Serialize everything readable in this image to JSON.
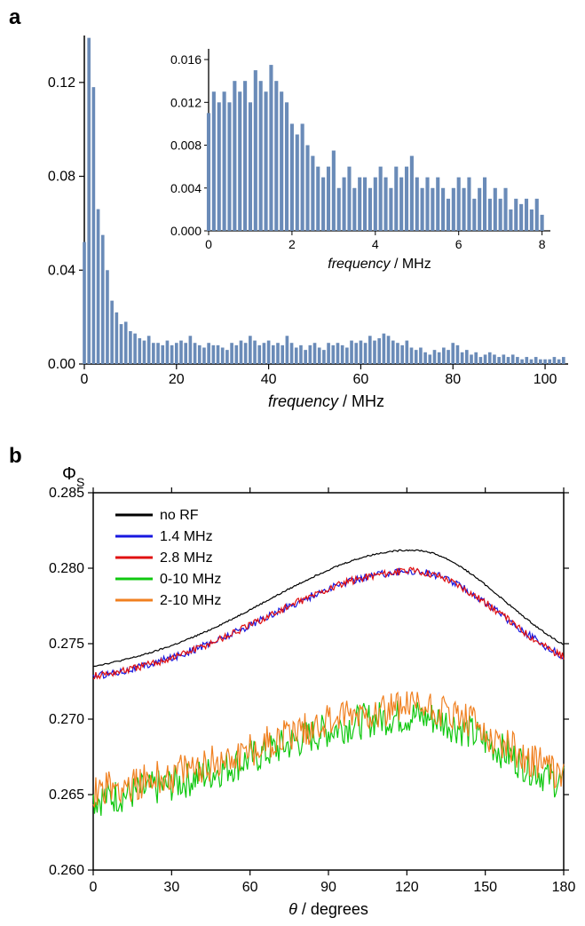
{
  "panel_a": {
    "label": "a",
    "main_chart": {
      "type": "bar",
      "xlabel": "frequency / MHz",
      "ylabel": "",
      "xlim": [
        0,
        105
      ],
      "ylim": [
        0,
        0.14
      ],
      "xticks": [
        0,
        20,
        40,
        60,
        80,
        100
      ],
      "yticks": [
        0.0,
        0.04,
        0.08,
        0.12
      ],
      "bar_color": "#6a8bb8",
      "background_color": "#ffffff",
      "axis_color": "#000000",
      "label_fontsize": 18,
      "tick_fontsize": 16,
      "bar_width": 0.7,
      "x_values": [
        0,
        1,
        2,
        3,
        4,
        5,
        6,
        7,
        8,
        9,
        10,
        11,
        12,
        13,
        14,
        15,
        16,
        17,
        18,
        19,
        20,
        21,
        22,
        23,
        24,
        25,
        26,
        27,
        28,
        29,
        30,
        31,
        32,
        33,
        34,
        35,
        36,
        37,
        38,
        39,
        40,
        41,
        42,
        43,
        44,
        45,
        46,
        47,
        48,
        49,
        50,
        51,
        52,
        53,
        54,
        55,
        56,
        57,
        58,
        59,
        60,
        61,
        62,
        63,
        64,
        65,
        66,
        67,
        68,
        69,
        70,
        71,
        72,
        73,
        74,
        75,
        76,
        77,
        78,
        79,
        80,
        81,
        82,
        83,
        84,
        85,
        86,
        87,
        88,
        89,
        90,
        91,
        92,
        93,
        94,
        95,
        96,
        97,
        98,
        99,
        100,
        101,
        102,
        103,
        104
      ],
      "y_values": [
        0.052,
        0.139,
        0.118,
        0.066,
        0.055,
        0.04,
        0.027,
        0.022,
        0.017,
        0.018,
        0.014,
        0.013,
        0.011,
        0.01,
        0.012,
        0.009,
        0.009,
        0.008,
        0.01,
        0.008,
        0.009,
        0.01,
        0.009,
        0.012,
        0.009,
        0.008,
        0.007,
        0.009,
        0.008,
        0.008,
        0.007,
        0.006,
        0.009,
        0.008,
        0.01,
        0.009,
        0.012,
        0.01,
        0.008,
        0.009,
        0.01,
        0.008,
        0.009,
        0.008,
        0.012,
        0.009,
        0.007,
        0.008,
        0.006,
        0.008,
        0.009,
        0.007,
        0.006,
        0.009,
        0.008,
        0.009,
        0.008,
        0.007,
        0.01,
        0.009,
        0.01,
        0.009,
        0.012,
        0.01,
        0.011,
        0.013,
        0.012,
        0.01,
        0.009,
        0.008,
        0.01,
        0.007,
        0.006,
        0.007,
        0.005,
        0.004,
        0.006,
        0.005,
        0.007,
        0.006,
        0.009,
        0.008,
        0.005,
        0.006,
        0.004,
        0.005,
        0.003,
        0.004,
        0.005,
        0.004,
        0.003,
        0.004,
        0.003,
        0.004,
        0.003,
        0.002,
        0.003,
        0.002,
        0.003,
        0.002,
        0.002,
        0.002,
        0.003,
        0.002,
        0.003
      ]
    },
    "inset_chart": {
      "type": "bar",
      "xlabel": "frequency / MHz",
      "ylabel": "",
      "xlim": [
        0,
        8.2
      ],
      "ylim": [
        0,
        0.017
      ],
      "xticks": [
        0,
        2,
        4,
        6,
        8
      ],
      "yticks": [
        0.0,
        0.004,
        0.008,
        0.012,
        0.016
      ],
      "bar_color": "#6a8bb8",
      "background_color": "#ffffff",
      "axis_color": "#000000",
      "label_fontsize": 16,
      "tick_fontsize": 14,
      "bar_width": 0.7,
      "x_step": 0.125,
      "n_bars": 65,
      "y_values": [
        0.011,
        0.013,
        0.012,
        0.013,
        0.012,
        0.014,
        0.013,
        0.014,
        0.012,
        0.015,
        0.014,
        0.013,
        0.0155,
        0.014,
        0.013,
        0.012,
        0.01,
        0.009,
        0.01,
        0.008,
        0.007,
        0.006,
        0.005,
        0.006,
        0.0075,
        0.004,
        0.005,
        0.006,
        0.004,
        0.005,
        0.005,
        0.004,
        0.005,
        0.006,
        0.005,
        0.004,
        0.006,
        0.005,
        0.006,
        0.007,
        0.005,
        0.004,
        0.005,
        0.004,
        0.005,
        0.004,
        0.003,
        0.004,
        0.005,
        0.004,
        0.005,
        0.003,
        0.004,
        0.005,
        0.003,
        0.004,
        0.003,
        0.004,
        0.002,
        0.003,
        0.0025,
        0.003,
        0.002,
        0.003,
        0.0015
      ]
    }
  },
  "panel_b": {
    "label": "b",
    "chart": {
      "type": "line",
      "xlabel": "θ / degrees",
      "ylabel": "Φs",
      "ylabel_sub": "S",
      "xlim": [
        0,
        180
      ],
      "ylim": [
        0.26,
        0.285
      ],
      "xticks": [
        0,
        30,
        60,
        90,
        120,
        150,
        180
      ],
      "yticks": [
        0.26,
        0.265,
        0.27,
        0.275,
        0.28,
        0.285
      ],
      "background_color": "#ffffff",
      "axis_color": "#000000",
      "label_fontsize": 18,
      "tick_fontsize": 16,
      "line_width": 1.2,
      "legend_position": "top-left",
      "legend_fontsize": 16,
      "series": [
        {
          "name": "no RF",
          "color": "#000000",
          "base": 0.2728,
          "peak": 0.2812,
          "peak_x": 122,
          "noise": 5e-05
        },
        {
          "name": "1.4 MHz",
          "color": "#1818e0",
          "base": 0.2722,
          "peak": 0.2798,
          "peak_x": 122,
          "noise": 0.00025
        },
        {
          "name": "2.8 MHz",
          "color": "#e01010",
          "base": 0.2722,
          "peak": 0.2798,
          "peak_x": 122,
          "noise": 0.00025
        },
        {
          "name": "0-10 MHz",
          "color": "#10c810",
          "base": 0.2642,
          "peak": 0.2702,
          "peak_x": 122,
          "noise": 0.0012
        },
        {
          "name": "2-10 MHz",
          "color": "#f08020",
          "base": 0.2648,
          "peak": 0.2708,
          "peak_x": 122,
          "noise": 0.0012
        }
      ]
    }
  }
}
